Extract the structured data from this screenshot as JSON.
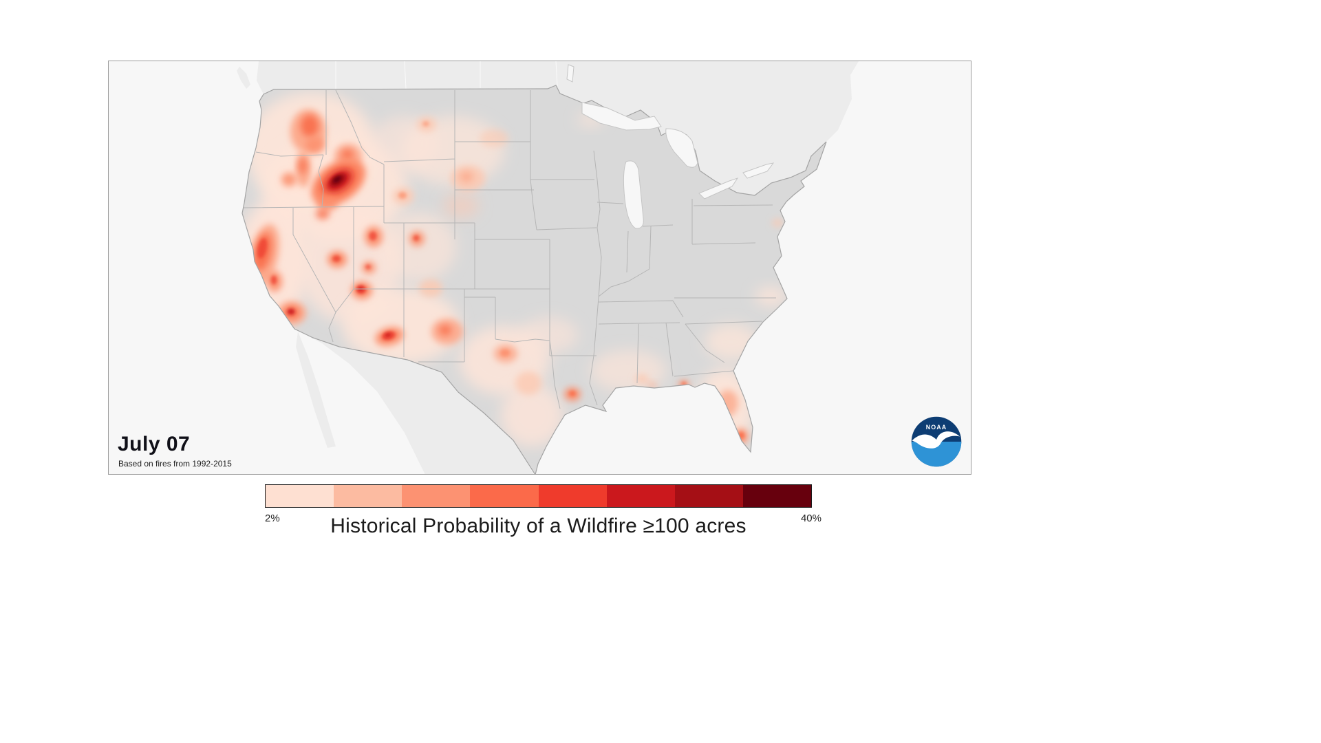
{
  "panel": {
    "date_label": "July 07",
    "source_note": "Based on fires from 1992-2015",
    "noaa_logo_text": "NOAA"
  },
  "legend": {
    "min_label": "2%",
    "max_label": "40%",
    "title": "Historical Probability of a Wildfire ≥100 acres",
    "colors": [
      "#fee0d2",
      "#fcbba1",
      "#fc9272",
      "#fb6a4a",
      "#ef3b2c",
      "#cb181d",
      "#a50f15",
      "#67000d"
    ]
  },
  "map": {
    "palette": {
      "L1": "#fee5d9",
      "L2": "#fcc9b2",
      "L3": "#fcab8e",
      "L4": "#fc8d6a",
      "L5": "#f9704e",
      "L6": "#ef4533",
      "L7": "#cb181d",
      "L8": "#a50f15",
      "L9": "#67000d"
    },
    "hotspot_fields": [
      "x",
      "y",
      "rx",
      "ry",
      "rot",
      "fill",
      "opacity",
      "blur"
    ],
    "hotspots": [
      [
        295,
        130,
        95,
        85,
        0,
        "L1",
        0.9,
        "s"
      ],
      [
        330,
        185,
        105,
        75,
        0,
        "L1",
        0.9,
        "s"
      ],
      [
        235,
        300,
        55,
        105,
        8,
        "L1",
        0.95,
        "s"
      ],
      [
        350,
        295,
        75,
        85,
        0,
        "L1",
        0.8,
        "s"
      ],
      [
        425,
        385,
        85,
        55,
        0,
        "L1",
        0.9,
        "s"
      ],
      [
        450,
        270,
        55,
        50,
        0,
        "L1",
        0.65,
        "s"
      ],
      [
        500,
        130,
        75,
        50,
        0,
        "L1",
        0.7,
        "s"
      ],
      [
        575,
        435,
        65,
        50,
        0,
        "L1",
        0.85,
        "s"
      ],
      [
        615,
        515,
        45,
        45,
        0,
        "L1",
        0.8,
        "s"
      ],
      [
        755,
        450,
        55,
        30,
        0,
        "L1",
        0.65,
        "s"
      ],
      [
        895,
        505,
        42,
        58,
        0,
        "L1",
        0.9,
        "s"
      ],
      [
        905,
        408,
        38,
        26,
        0,
        "L1",
        0.75,
        "s"
      ],
      [
        640,
        398,
        42,
        26,
        0,
        "L1",
        0.6,
        "s"
      ],
      [
        512,
        210,
        26,
        18,
        0,
        "L2",
        0.55,
        "s"
      ],
      [
        700,
        85,
        18,
        10,
        0,
        "L1",
        0.7,
        "s"
      ],
      [
        962,
        342,
        22,
        13,
        0,
        "L1",
        0.85,
        "s"
      ],
      [
        430,
        120,
        50,
        40,
        0,
        "L1",
        0.6,
        "s"
      ],
      [
        290,
        102,
        26,
        32,
        0,
        "L3",
        1,
        "m"
      ],
      [
        292,
        94,
        13,
        16,
        0,
        "L5",
        0.95,
        "m"
      ],
      [
        300,
        122,
        14,
        12,
        0,
        "L4",
        0.8,
        "m"
      ],
      [
        348,
        138,
        20,
        18,
        0,
        "L3",
        0.95,
        "m"
      ],
      [
        347,
        136,
        9,
        8,
        0,
        "L5",
        0.85,
        "m"
      ],
      [
        283,
        157,
        11,
        26,
        0,
        "L3",
        1,
        "m"
      ],
      [
        282,
        152,
        6,
        12,
        0,
        "L5",
        0.8,
        "m"
      ],
      [
        262,
        172,
        11,
        10,
        0,
        "L4",
        0.85,
        "m"
      ],
      [
        334,
        176,
        44,
        28,
        -35,
        "L4",
        1,
        "m"
      ],
      [
        334,
        175,
        31,
        19,
        -35,
        "L5",
        1,
        "m"
      ],
      [
        334,
        174,
        21,
        12,
        -35,
        "L7",
        1,
        "m"
      ],
      [
        333,
        173,
        13,
        7.5,
        -35,
        "L8",
        1,
        "c"
      ],
      [
        332,
        172,
        7,
        4,
        -35,
        "L9",
        1,
        "c"
      ],
      [
        318,
        206,
        15,
        11,
        0,
        "L4",
        0.8,
        "m"
      ],
      [
        311,
        222,
        10,
        8,
        0,
        "L5",
        0.8,
        "m"
      ],
      [
        332,
        288,
        14,
        12,
        0,
        "L4",
        0.95,
        "m"
      ],
      [
        331,
        287,
        6,
        5,
        0,
        "L6",
        0.85,
        "c"
      ],
      [
        226,
        282,
        20,
        46,
        12,
        "L3",
        1,
        "m"
      ],
      [
        224,
        277,
        12,
        28,
        12,
        "L5",
        0.95,
        "m"
      ],
      [
        223,
        272,
        6.5,
        15,
        12,
        "L6",
        0.9,
        "c"
      ],
      [
        241,
        320,
        11,
        15,
        0,
        "L4",
        0.9,
        "m"
      ],
      [
        240,
        318,
        4.5,
        6.5,
        0,
        "L6",
        0.8,
        "c"
      ],
      [
        266,
        366,
        21,
        17,
        0,
        "L3",
        1,
        "m"
      ],
      [
        266,
        365,
        11,
        9,
        0,
        "L5",
        1,
        "m"
      ],
      [
        265,
        364,
        5.5,
        4.5,
        0,
        "L7",
        0.9,
        "c"
      ],
      [
        385,
        255,
        13,
        15,
        0,
        "L4",
        0.9,
        "m"
      ],
      [
        384,
        254,
        5.5,
        6.5,
        0,
        "L6",
        0.8,
        "c"
      ],
      [
        378,
        300,
        10,
        9,
        0,
        "L4",
        0.85,
        "m"
      ],
      [
        377,
        299,
        4,
        3.6,
        0,
        "L6",
        0.7,
        "c"
      ],
      [
        368,
        333,
        15,
        13,
        0,
        "L4",
        0.95,
        "m"
      ],
      [
        367,
        332,
        7.5,
        6.5,
        0,
        "L6",
        0.9,
        "c"
      ],
      [
        366,
        331,
        3.8,
        3.3,
        0,
        "L7",
        0.85,
        "c"
      ],
      [
        408,
        400,
        21,
        13,
        -15,
        "L4",
        0.95,
        "m"
      ],
      [
        407,
        399,
        10.5,
        6.5,
        -15,
        "L6",
        0.9,
        "c"
      ],
      [
        406,
        398,
        5,
        3,
        -15,
        "L7",
        0.8,
        "c"
      ],
      [
        448,
        258,
        11,
        11,
        0,
        "L4",
        0.85,
        "m"
      ],
      [
        447,
        257,
        4.5,
        4.5,
        0,
        "L6",
        0.75,
        "c"
      ],
      [
        492,
        393,
        23,
        19,
        0,
        "L3",
        0.95,
        "m"
      ],
      [
        489,
        391,
        9,
        7.5,
        0,
        "L5",
        0.85,
        "m"
      ],
      [
        468,
        330,
        17,
        13,
        0,
        "L2",
        0.85,
        "m"
      ],
      [
        428,
        196,
        15,
        12,
        0,
        "L2",
        0.9,
        "m"
      ],
      [
        427,
        195,
        6,
        5,
        0,
        "L4",
        0.7,
        "c"
      ],
      [
        462,
        92,
        14,
        11,
        0,
        "L2",
        0.8,
        "m"
      ],
      [
        461,
        91,
        5,
        4,
        0,
        "L4",
        0.55,
        "c"
      ],
      [
        522,
        170,
        25,
        19,
        0,
        "L2",
        0.9,
        "m"
      ],
      [
        520,
        168,
        10,
        8,
        0,
        "L3",
        0.85,
        "m"
      ],
      [
        560,
        112,
        21,
        13,
        0,
        "L2",
        0.6,
        "m"
      ],
      [
        577,
        425,
        17,
        13,
        0,
        "L3",
        0.9,
        "m"
      ],
      [
        576,
        424,
        7,
        5.5,
        0,
        "L4",
        0.8,
        "c"
      ],
      [
        610,
        468,
        19,
        17,
        0,
        "L2",
        0.8,
        "m"
      ],
      [
        674,
        484,
        12,
        10,
        0,
        "L4",
        0.9,
        "m"
      ],
      [
        674,
        483,
        5,
        4,
        0,
        "L5",
        0.9,
        "c"
      ],
      [
        836,
        470,
        8,
        6,
        0,
        "L4",
        0.85,
        "m"
      ],
      [
        836,
        469,
        3.8,
        3,
        0,
        "L5",
        0.8,
        "c"
      ],
      [
        900,
        497,
        15,
        19,
        0,
        "L3",
        0.85,
        "m"
      ],
      [
        919,
        545,
        10,
        11,
        0,
        "L4",
        0.95,
        "m"
      ],
      [
        919,
        544,
        4.8,
        5,
        0,
        "L5",
        0.9,
        "c"
      ],
      [
        775,
        462,
        10,
        7,
        0,
        "L2",
        0.8,
        "m"
      ],
      [
        790,
        471,
        7,
        5,
        0,
        "L3",
        0.6,
        "m"
      ],
      [
        972,
        235,
        8,
        6,
        0,
        "L2",
        0.75,
        "m"
      ]
    ]
  }
}
